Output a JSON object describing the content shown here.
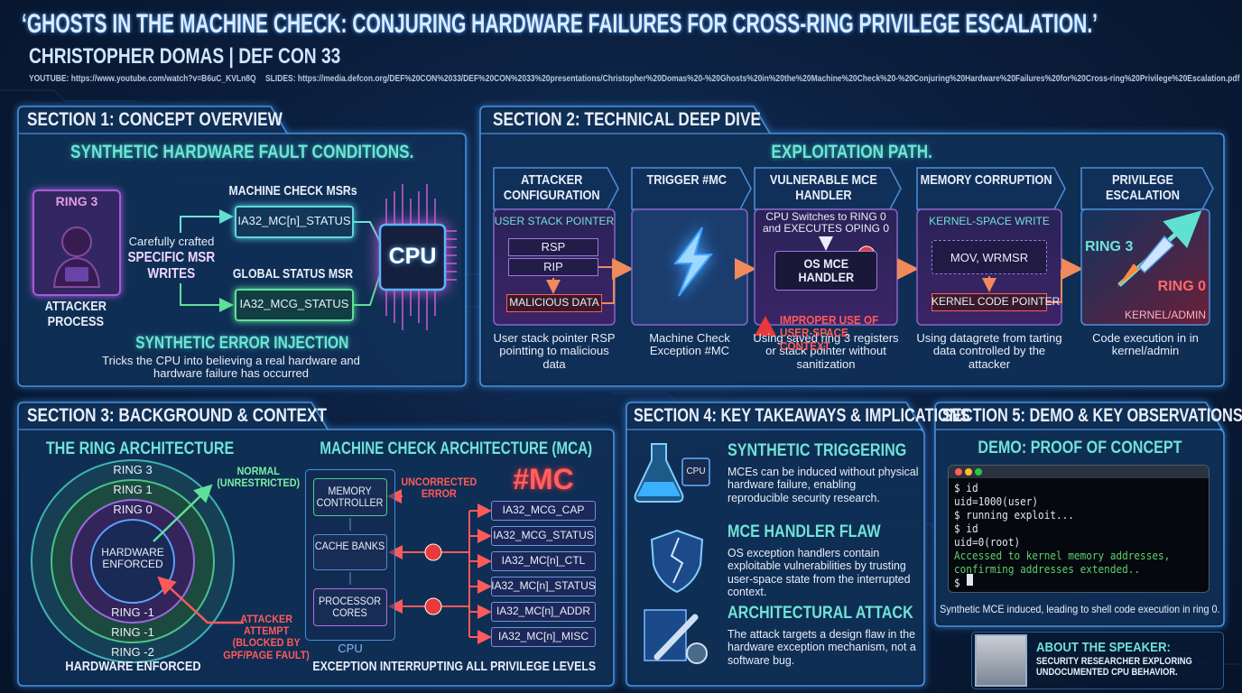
{
  "header": {
    "title": "‘GHOSTS IN THE MACHINE CHECK: CONJURING HARDWARE FAILURES FOR CROSS-RING PRIVILEGE ESCALATION.’",
    "subtitle": "CHRISTOPHER DOMAS | DEF CON 33",
    "youtube": "YOUTUBE: https://www.youtube.com/watch?v=B6uC_KVLn8Q",
    "slides": "SLIDES: https://media.defcon.org/DEF%20CON%2033/DEF%20CON%2033%20presentations/Christopher%20Domas%20-%20Ghosts%20in%20the%20Machine%20Check%20-%20Conjuring%20Hardware%20Failures%20for%20Cross-ring%20Privilege%20Escalation.pdf"
  },
  "section1": {
    "heading": "SECTION 1: CONCEPT OVERVIEW",
    "subheading": "SYNTHETIC HARDWARE FAULT CONDITIONS.",
    "ring_label": "RING 3",
    "attacker_label": "ATTACKER PROCESS",
    "writes_intro": "Carefully crafted",
    "writes_label": "SPECIFIC MSR WRITES",
    "mc_msrs_label": "MACHINE CHECK MSRs",
    "mc_status": "IA32_MC[n]_STATUS",
    "global_label": "GLOBAL STATUS MSR",
    "mcg_status": "IA32_MCG_STATUS",
    "cpu": "CPU",
    "injection_title": "SYNTHETIC ERROR INJECTION",
    "injection_text": "Tricks the CPU into believing a real hardware and hardware failure has occurred"
  },
  "section2": {
    "heading": "SECTION 2: TECHNICAL DEEP DIVE",
    "subheading": "EXPLOITATION PATH.",
    "steps": [
      {
        "title": "ATTACKER CONFIGURATION",
        "label": "USER STACK POINTER",
        "items": [
          "RSP",
          "RIP",
          "MALICIOUS DATA"
        ],
        "caption": "User stack pointer RSP pointting to malicious data"
      },
      {
        "title": "TRIGGER #MC",
        "caption": "Machine Check Exception #MC"
      },
      {
        "title": "VULNERABLE MCE HANDLER",
        "label": "CPU Switches to RING 0 and EXECUTES OPING 0",
        "items": [
          "OS MCE HANDLER"
        ],
        "warning": "IMPROPER USE OF USER-SPACE CONTEXT",
        "caption": "Using saved ring 3 registers or stack pointer without sanitization"
      },
      {
        "title": "MEMORY CORRUPTION",
        "label": "KERNEL-SPACE WRITE",
        "items": [
          "MOV, WRMSR",
          "KERNEL CODE POINTER"
        ],
        "caption": "Using datagrete from tarting data controlled by the attacker"
      },
      {
        "title": "PRIVILEGE ESCALATION",
        "items": [
          "RING 3",
          "RING 0",
          "KERNEL/ADMIN"
        ],
        "caption": "Code execution in in kernel/admin"
      }
    ]
  },
  "section3": {
    "heading": "SECTION 3: BACKGROUND & CONTEXT",
    "rings_title": "THE RING ARCHITECTURE",
    "rings": [
      "RING 3",
      "RING 1",
      "RING 0",
      "RING -1",
      "RING -1",
      "RING -2"
    ],
    "center": "HARDWARE ENFORCED",
    "normal": "NORMAL (UNRESTRICTED)",
    "attack": "ATTACKER ATTEMPT (BLOCKED BY GPF/PAGE FAULT)",
    "rings_footer": "HARDWARE ENFORCED",
    "mca_title": "MACHINE CHECK ARCHITECTURE (MCA)",
    "components": [
      "MEMORY CONTROLLER",
      "CACHE BANKS",
      "PROCESSOR CORES"
    ],
    "cpu": "CPU",
    "uncorrected": "UNCORRECTED ERROR",
    "mc": "#MC",
    "registers": [
      "IA32_MCG_CAP",
      "IA32_MCG_STATUS",
      "IA32_MC[n]_CTL",
      "IA32_MC[n]_STATUS",
      "IA32_MC[n]_ADDR",
      "IA32_MC[n]_MISC"
    ],
    "mca_footer": "EXCEPTION INTERRUPTING ALL PRIVILEGE LEVELS"
  },
  "section4": {
    "heading": "SECTION 4: KEY TAKEAWAYS & IMPLICATIONS",
    "icon_label": "CPU",
    "items": [
      {
        "title": "SYNTHETIC TRIGGERING",
        "text": "MCEs can be induced without physical hardware failure, enabling reproducible security research."
      },
      {
        "title": "MCE HANDLER FLAW",
        "text": "OS exception handlers contain exploitable vulnerabilities by trusting user-space state from the interrupted context."
      },
      {
        "title": "ARCHITECTURAL ATTACK",
        "text": "The attack targets a design flaw in the hardware exception mechanism, not a software bug."
      }
    ]
  },
  "section5": {
    "heading": "SECTION 5: DEMO & KEY OBSERVATIONS",
    "demo_title": "DEMO: PROOF OF CONCEPT",
    "terminal": [
      {
        "text": "$ id",
        "color": "#e6e6e6"
      },
      {
        "text": "uid=1000(user)",
        "color": "#e6e6e6"
      },
      {
        "text": "$ running exploit...",
        "color": "#e6e6e6"
      },
      {
        "text": "$ id",
        "color": "#e6e6e6"
      },
      {
        "text": "uid=0(root)",
        "color": "#e6e6e6"
      },
      {
        "text": "Accessed to kernel memory addresses,",
        "color": "#5fd06a"
      },
      {
        "text": "confirming addresses extended..",
        "color": "#5fd06a"
      },
      {
        "text": "$",
        "color": "#e6e6e6"
      }
    ],
    "caption": "Synthetic MCE induced, leading to shell code execution in ring 0.",
    "speaker_title": "ABOUT THE SPEAKER:",
    "speaker_text": "SECURITY RESEARCHER EXPLORING UNDOCUMENTED CPU BEHAVIOR."
  }
}
